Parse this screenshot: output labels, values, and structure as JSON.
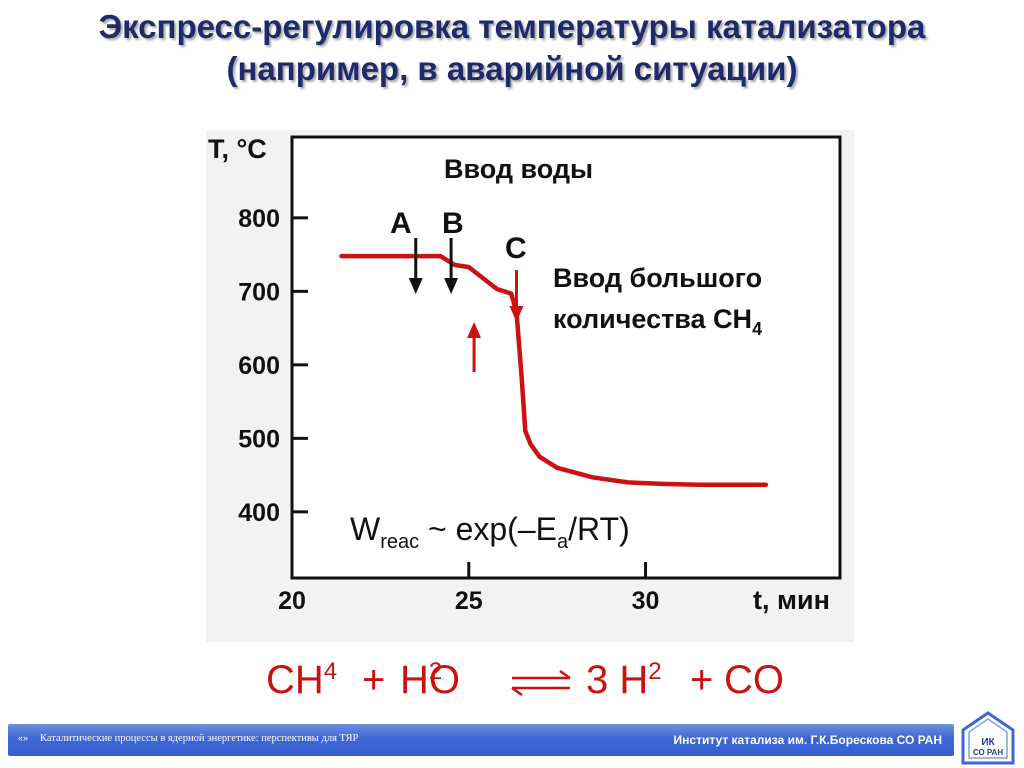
{
  "slide": {
    "title_line1": "Экспресс-регулировка температуры катализатора",
    "title_line2": "(например, в аварийной ситуации)"
  },
  "chart_data": {
    "type": "line",
    "ylabel": "T, °C",
    "xlabel": "t, мин",
    "x_ticks": [
      20,
      25,
      30
    ],
    "y_ticks": [
      400,
      500,
      600,
      700,
      800
    ],
    "xlim": [
      20,
      35.5
    ],
    "ylim": [
      310,
      910
    ],
    "grid": false,
    "series": [
      {
        "color": "#cc1111",
        "x": [
          21.4,
          22.5,
          23.5,
          24.2,
          24.6,
          25.0,
          25.4,
          25.8,
          26.2,
          26.35,
          26.5,
          26.6,
          26.75,
          27.0,
          27.5,
          28.5,
          29.5,
          30.5,
          31.5,
          32.5,
          33.4
        ],
        "y": [
          748,
          748,
          748,
          748,
          736,
          733,
          718,
          703,
          697,
          672,
          580,
          510,
          492,
          475,
          460,
          447,
          440,
          438,
          437,
          437,
          437
        ]
      }
    ],
    "annotations": {
      "water_title": "Ввод воды",
      "label_a": "A",
      "label_b": "B",
      "label_c": "C",
      "methane_line1": "Ввод большого",
      "methane_line2_main": "количества CH",
      "methane_line2_sub": "4",
      "rate_w": "W",
      "rate_sub": "reac",
      "rate_rest_1": " ~ exp(–E",
      "rate_sub_a": "a",
      "rate_rest_2": "/RT)"
    },
    "markers": {
      "arrow_a_x": 23.5,
      "arrow_b_x": 24.5,
      "arrow_c_x": 26.35,
      "arrow_up_x": 25.15,
      "black": "#111111",
      "red": "#cc1111"
    }
  },
  "equation": {
    "left_1": "CH",
    "left_1_sub": "4",
    "plus_1": "+",
    "left_2a": "H",
    "left_2_sub": "2",
    "left_2b": "O",
    "right_1a": "3 H",
    "right_1_sub": "2",
    "plus_2": "+",
    "right_2": "CO"
  },
  "footer": {
    "bullet": "«»",
    "left_text": "Каталитические процессы в ядерной энергетике: перспективы для ТЯР",
    "right_text": "Институт катализа им. Г.К.Борескова СО РАН"
  },
  "logo": {
    "line1": "ИК",
    "line2": "СО РАН"
  },
  "colors": {
    "title": "#1f2a6b",
    "equation": "#cc1111",
    "footer_bar": "#3d66d6"
  }
}
